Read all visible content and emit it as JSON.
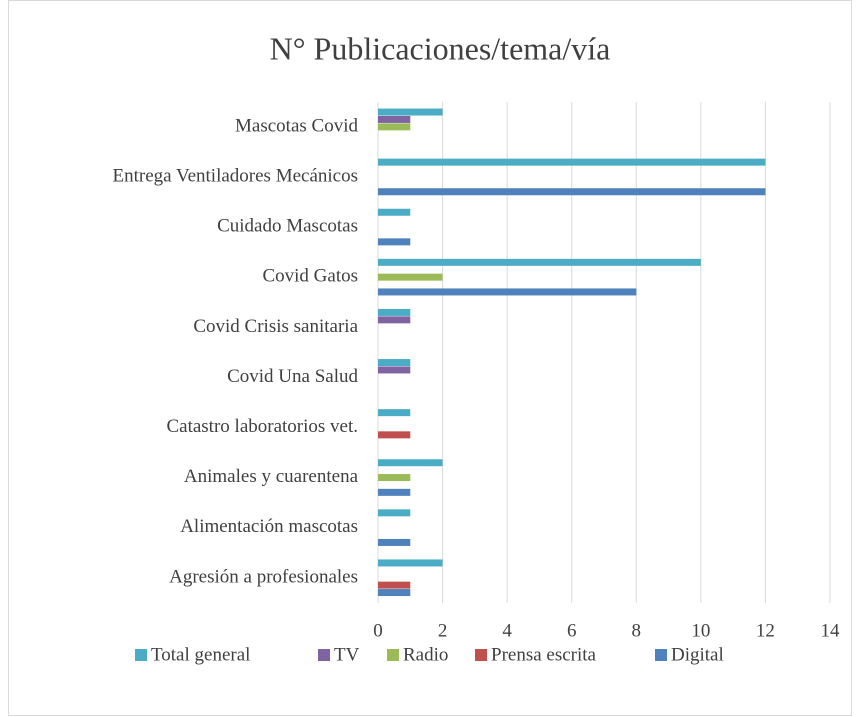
{
  "chart_data": {
    "type": "bar",
    "orientation": "horizontal",
    "title": "N° Publicaciones/tema/vía",
    "categories": [
      "Mascotas Covid",
      "Entrega Ventiladores Mecánicos",
      "Cuidado Mascotas",
      "Covid Gatos",
      "Covid Crisis sanitaria",
      "Covid  Una Salud",
      "Catastro laboratorios vet.",
      "Animales y cuarentena",
      "Alimentación mascotas",
      "Agresión a profesionales"
    ],
    "series": [
      {
        "name": "Total general",
        "color": "#4bacc6",
        "values": [
          2,
          12,
          1,
          10,
          1,
          1,
          1,
          2,
          1,
          2
        ]
      },
      {
        "name": "TV",
        "color": "#8064a2",
        "values": [
          1,
          0,
          0,
          0,
          1,
          1,
          0,
          0,
          0,
          0
        ]
      },
      {
        "name": "Radio",
        "color": "#9bbb59",
        "values": [
          1,
          0,
          0,
          2,
          0,
          0,
          0,
          1,
          0,
          0
        ]
      },
      {
        "name": "Prensa escrita",
        "color": "#c0504d",
        "values": [
          0,
          0,
          0,
          0,
          0,
          0,
          1,
          0,
          0,
          1
        ]
      },
      {
        "name": "Digital",
        "color": "#4f81bd",
        "values": [
          0,
          12,
          1,
          8,
          0,
          0,
          0,
          1,
          1,
          1
        ]
      }
    ],
    "xlim": [
      0,
      14
    ],
    "xticks": [
      0,
      2,
      4,
      6,
      8,
      10,
      12,
      14
    ],
    "grid": true,
    "legend": "bottom"
  }
}
